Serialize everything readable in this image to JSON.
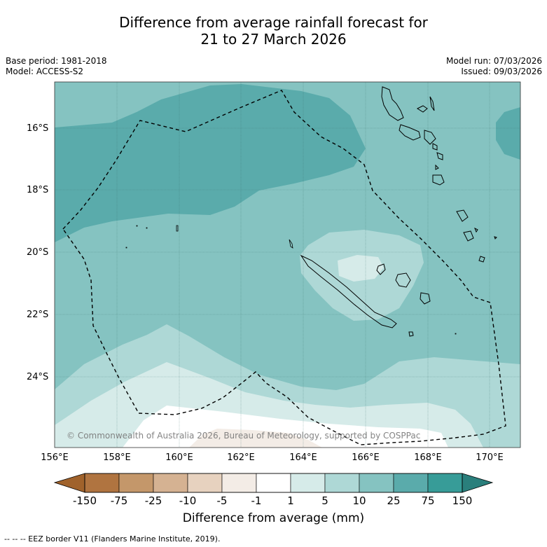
{
  "title_line1": "Difference from average rainfall forecast for",
  "title_line2": "21 to 27 March 2026",
  "meta": {
    "base_period": "Base period: 1981-2018",
    "model": "Model: ACCESS-S2",
    "model_run": "Model run: 07/03/2026",
    "issued": "Issued: 09/03/2026"
  },
  "latitude_labels": [
    "16°S",
    "18°S",
    "20°S",
    "22°S",
    "24°S"
  ],
  "longitude_labels": [
    "156°E",
    "158°E",
    "160°E",
    "162°E",
    "164°E",
    "166°E",
    "168°E",
    "170°E"
  ],
  "copyright": "© Commonwealth of Australia 2026, Bureau of Meteorology, supported by COSPPac",
  "colorbar": {
    "ticks": [
      "-150",
      "-75",
      "-25",
      "-10",
      "-5",
      "-1",
      "1",
      "5",
      "10",
      "25",
      "75",
      "150"
    ],
    "colors": [
      "#a0622b",
      "#b07440",
      "#c4976a",
      "#d5b292",
      "#e7d2bf",
      "#f3ece6",
      "#ffffff",
      "#d6ebe9",
      "#aed8d6",
      "#85c3c1",
      "#5aabab",
      "#379c98",
      "#2a7f7c"
    ],
    "title": "Difference from average (mm)"
  },
  "legend_footer": "--  --  -- EEZ border V11 (Flanders Marine Institute, 2019).",
  "colors": {
    "c10_25": "#85c3c1",
    "c25_75": "#5aabab",
    "c5_10": "#aed8d6",
    "c1_5": "#d6ebe9",
    "cm1_1": "#ffffff",
    "cm5_m1": "#f3ece6"
  }
}
